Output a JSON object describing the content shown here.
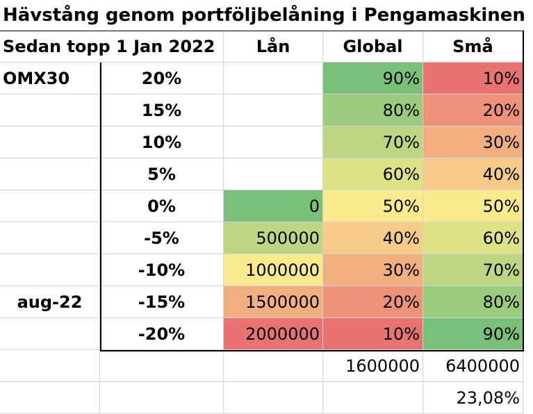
{
  "title": "Hävstång genom portföljbelåning i Pengamaskinen",
  "header": {
    "label": "Sedan topp 1 Jan 2022",
    "col_lan": "Lån",
    "col_global": "Global",
    "col_sma": "Små"
  },
  "rows": [
    {
      "label": "OMX30",
      "pct": "20%",
      "lan": "",
      "global": "90%",
      "sma": "10%",
      "colors": {
        "lan": "",
        "global": "#7abf7a",
        "sma": "#e87371"
      }
    },
    {
      "label": "",
      "pct": "15%",
      "lan": "",
      "global": "80%",
      "sma": "20%",
      "colors": {
        "lan": "",
        "global": "#9bcb7d",
        "sma": "#ed9279"
      }
    },
    {
      "label": "",
      "pct": "10%",
      "lan": "",
      "global": "70%",
      "sma": "30%",
      "colors": {
        "lan": "",
        "global": "#bcd683",
        "sma": "#f1ae80"
      }
    },
    {
      "label": "",
      "pct": "5%",
      "lan": "",
      "global": "60%",
      "sma": "40%",
      "colors": {
        "lan": "",
        "global": "#dde289",
        "sma": "#f6cb87"
      }
    },
    {
      "label": "",
      "pct": "0%",
      "lan": "0",
      "global": "50%",
      "sma": "50%",
      "colors": {
        "lan": "#7abf7a",
        "global": "#fbe98e",
        "sma": "#fbe98e"
      }
    },
    {
      "label": "",
      "pct": "-5%",
      "lan": "500000",
      "global": "40%",
      "sma": "60%",
      "colors": {
        "lan": "#bcd683",
        "global": "#f6cb87",
        "sma": "#dde289"
      }
    },
    {
      "label": "",
      "pct": "-10%",
      "lan": "1000000",
      "global": "30%",
      "sma": "70%",
      "colors": {
        "lan": "#fbe98e",
        "global": "#f1ae80",
        "sma": "#bcd683"
      }
    },
    {
      "label": "aug-22",
      "pct": "-15%",
      "lan": "1500000",
      "global": "20%",
      "sma": "80%",
      "colors": {
        "lan": "#f1ae80",
        "global": "#ed9279",
        "sma": "#9bcb7d"
      }
    },
    {
      "label": "",
      "pct": "-20%",
      "lan": "2000000",
      "global": "10%",
      "sma": "90%",
      "colors": {
        "lan": "#e87371",
        "global": "#e87371",
        "sma": "#7abf7a"
      }
    }
  ],
  "totals": {
    "global": "1600000",
    "sma": "6400000"
  },
  "ratio": {
    "sma": "23,08%"
  }
}
